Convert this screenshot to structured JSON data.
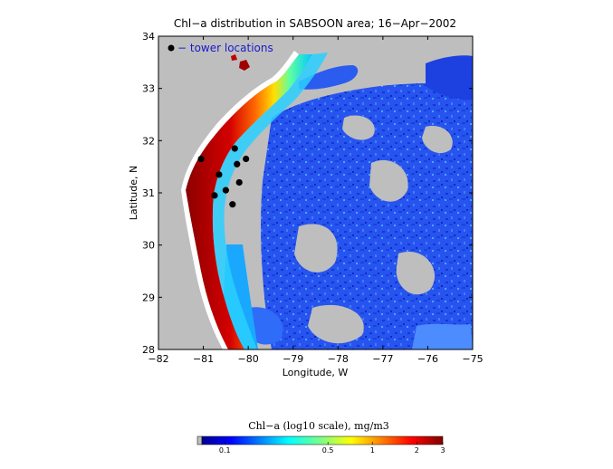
{
  "chart_data": {
    "type": "heatmap",
    "title": "Chl−a distribution in SABSOON area; 16−Apr−2002",
    "xlabel": "Longitude, W",
    "ylabel": "Latitude, N",
    "xlim": [
      -82,
      -75
    ],
    "ylim": [
      28,
      34
    ],
    "xticks": [
      -82,
      -81,
      -80,
      -79,
      -78,
      -77,
      -76,
      -75
    ],
    "xtick_labels": [
      "−82",
      "−81",
      "−80",
      "−79",
      "−78",
      "−77",
      "−76",
      "−75"
    ],
    "yticks": [
      28,
      29,
      30,
      31,
      32,
      33,
      34
    ],
    "ytick_labels": [
      "28",
      "29",
      "30",
      "31",
      "32",
      "33",
      "34"
    ],
    "legend": {
      "label": "− tower locations",
      "placement": "top-left",
      "marker_color": "#000000"
    },
    "tower_locations": [
      {
        "lon": -81.05,
        "lat": 31.65
      },
      {
        "lon": -80.3,
        "lat": 31.85
      },
      {
        "lon": -80.05,
        "lat": 31.65
      },
      {
        "lon": -80.25,
        "lat": 31.55
      },
      {
        "lon": -80.65,
        "lat": 31.35
      },
      {
        "lon": -80.2,
        "lat": 31.2
      },
      {
        "lon": -80.5,
        "lat": 31.05
      },
      {
        "lon": -80.75,
        "lat": 30.95
      },
      {
        "lon": -80.35,
        "lat": 30.78
      }
    ],
    "colorbar": {
      "title": "Chl−a (log10 scale), mg/m3",
      "tick_labels": [
        "0.1",
        "0.5",
        "1",
        "2",
        "3"
      ],
      "tick_values": [
        0.1,
        0.5,
        1,
        2,
        3
      ],
      "range": [
        0.07,
        3
      ]
    },
    "colors": {
      "land": "#ffffff",
      "no_data": "#bebebe",
      "low": "#0018c8",
      "mid": "#00c8ff",
      "high": "#7a0000"
    }
  }
}
